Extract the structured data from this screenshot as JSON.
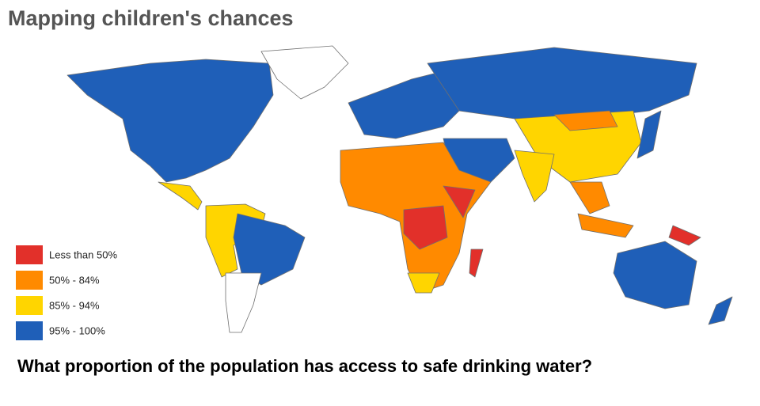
{
  "header": {
    "title": "Mapping children's chances"
  },
  "legend": [
    {
      "label": "Less than 50%",
      "color": "#e2302a"
    },
    {
      "label": "50% - 84%",
      "color": "#ff8a00"
    },
    {
      "label": "85% - 94%",
      "color": "#ffd500"
    },
    {
      "label": "95% - 100%",
      "color": "#1f5fb8"
    }
  ],
  "question": "What proportion of the population has access to safe drinking water?"
}
